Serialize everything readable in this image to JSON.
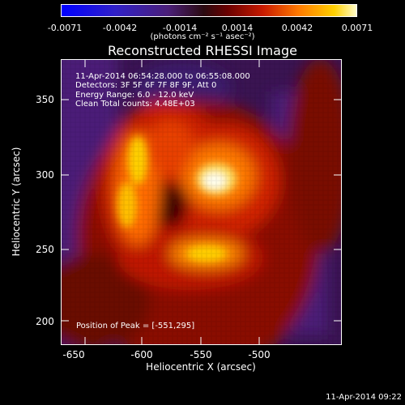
{
  "colorbar": {
    "tick_labels": [
      "-0.0071",
      "-0.0042",
      "-0.0014",
      "0.0014",
      "0.0042",
      "0.0071"
    ],
    "units": "(photons cm⁻² s⁻¹ asec⁻²)"
  },
  "title": "Reconstructed RHESSI Image",
  "info": {
    "line1": "11-Apr-2014 06:54:28.000 to 06:55:08.000",
    "line2": "Detectors: 3F 5F 6F 7F 8F 9F, Att 0",
    "line3": "Energy Range: 6.0 - 12.0 keV",
    "line4": "Clean    Total counts: 4.48E+03",
    "peak": "Position of Peak = [-551,295]"
  },
  "axes": {
    "xlabel": "Heliocentric X (arcsec)",
    "ylabel": "Heliocentric Y (arcsec)",
    "x_ticks": [
      "-650",
      "-600",
      "-550",
      "-500"
    ],
    "y_ticks": [
      "200",
      "250",
      "300",
      "350"
    ]
  },
  "footer": "11-Apr-2014 09:22",
  "colors": {
    "background": "#000000",
    "foreground": "#ffffff"
  }
}
